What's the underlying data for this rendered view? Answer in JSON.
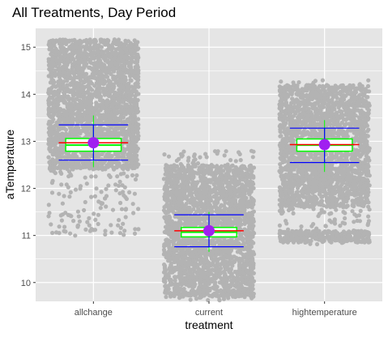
{
  "chart_data": {
    "type": "scatter",
    "title": "All Treatments, Day Period",
    "xlabel": "treatment",
    "ylabel": "aTemperature",
    "categories": [
      "allchange",
      "current",
      "hightemperature"
    ],
    "ylim": [
      9.6,
      15.4
    ],
    "yticks": [
      10,
      11,
      12,
      13,
      14,
      15
    ],
    "grid": true,
    "legend": "none",
    "colors": {
      "panel": "#e5e5e5",
      "grid": "#ffffff",
      "points": "#b3b3b3",
      "box": "#00ff00",
      "mean_point": "#a020f0",
      "mean_line": "#ff0000",
      "sd_lines": "#0000ff",
      "whisker": "#00ff00"
    },
    "groups": [
      {
        "name": "allchange",
        "point_range": [
          10.99,
          15.17
        ],
        "dense_range": [
          12.4,
          14.8
        ],
        "top_cluster": [
          14.75,
          15.17
        ],
        "q1": 12.79,
        "median": 12.92,
        "q3": 13.06,
        "whisker": [
          12.45,
          13.55
        ],
        "mean": 12.97,
        "sd_band": [
          12.6,
          13.35
        ]
      },
      {
        "name": "current",
        "point_range": [
          9.6,
          12.8
        ],
        "dense_range": [
          9.7,
          12.5
        ],
        "q1": 10.97,
        "median": 11.07,
        "q3": 11.17,
        "whisker": [
          10.65,
          11.5
        ],
        "mean": 11.1,
        "sd_band": [
          10.76,
          11.44
        ]
      },
      {
        "name": "hightemperature",
        "point_range": [
          10.8,
          14.3
        ],
        "dense_range": [
          11.6,
          14.2
        ],
        "bottom_cluster": [
          10.85,
          11.1
        ],
        "q1": 12.79,
        "median": 12.92,
        "q3": 13.05,
        "whisker": [
          12.35,
          13.45
        ],
        "mean": 12.93,
        "sd_band": [
          12.55,
          13.28
        ]
      }
    ]
  }
}
